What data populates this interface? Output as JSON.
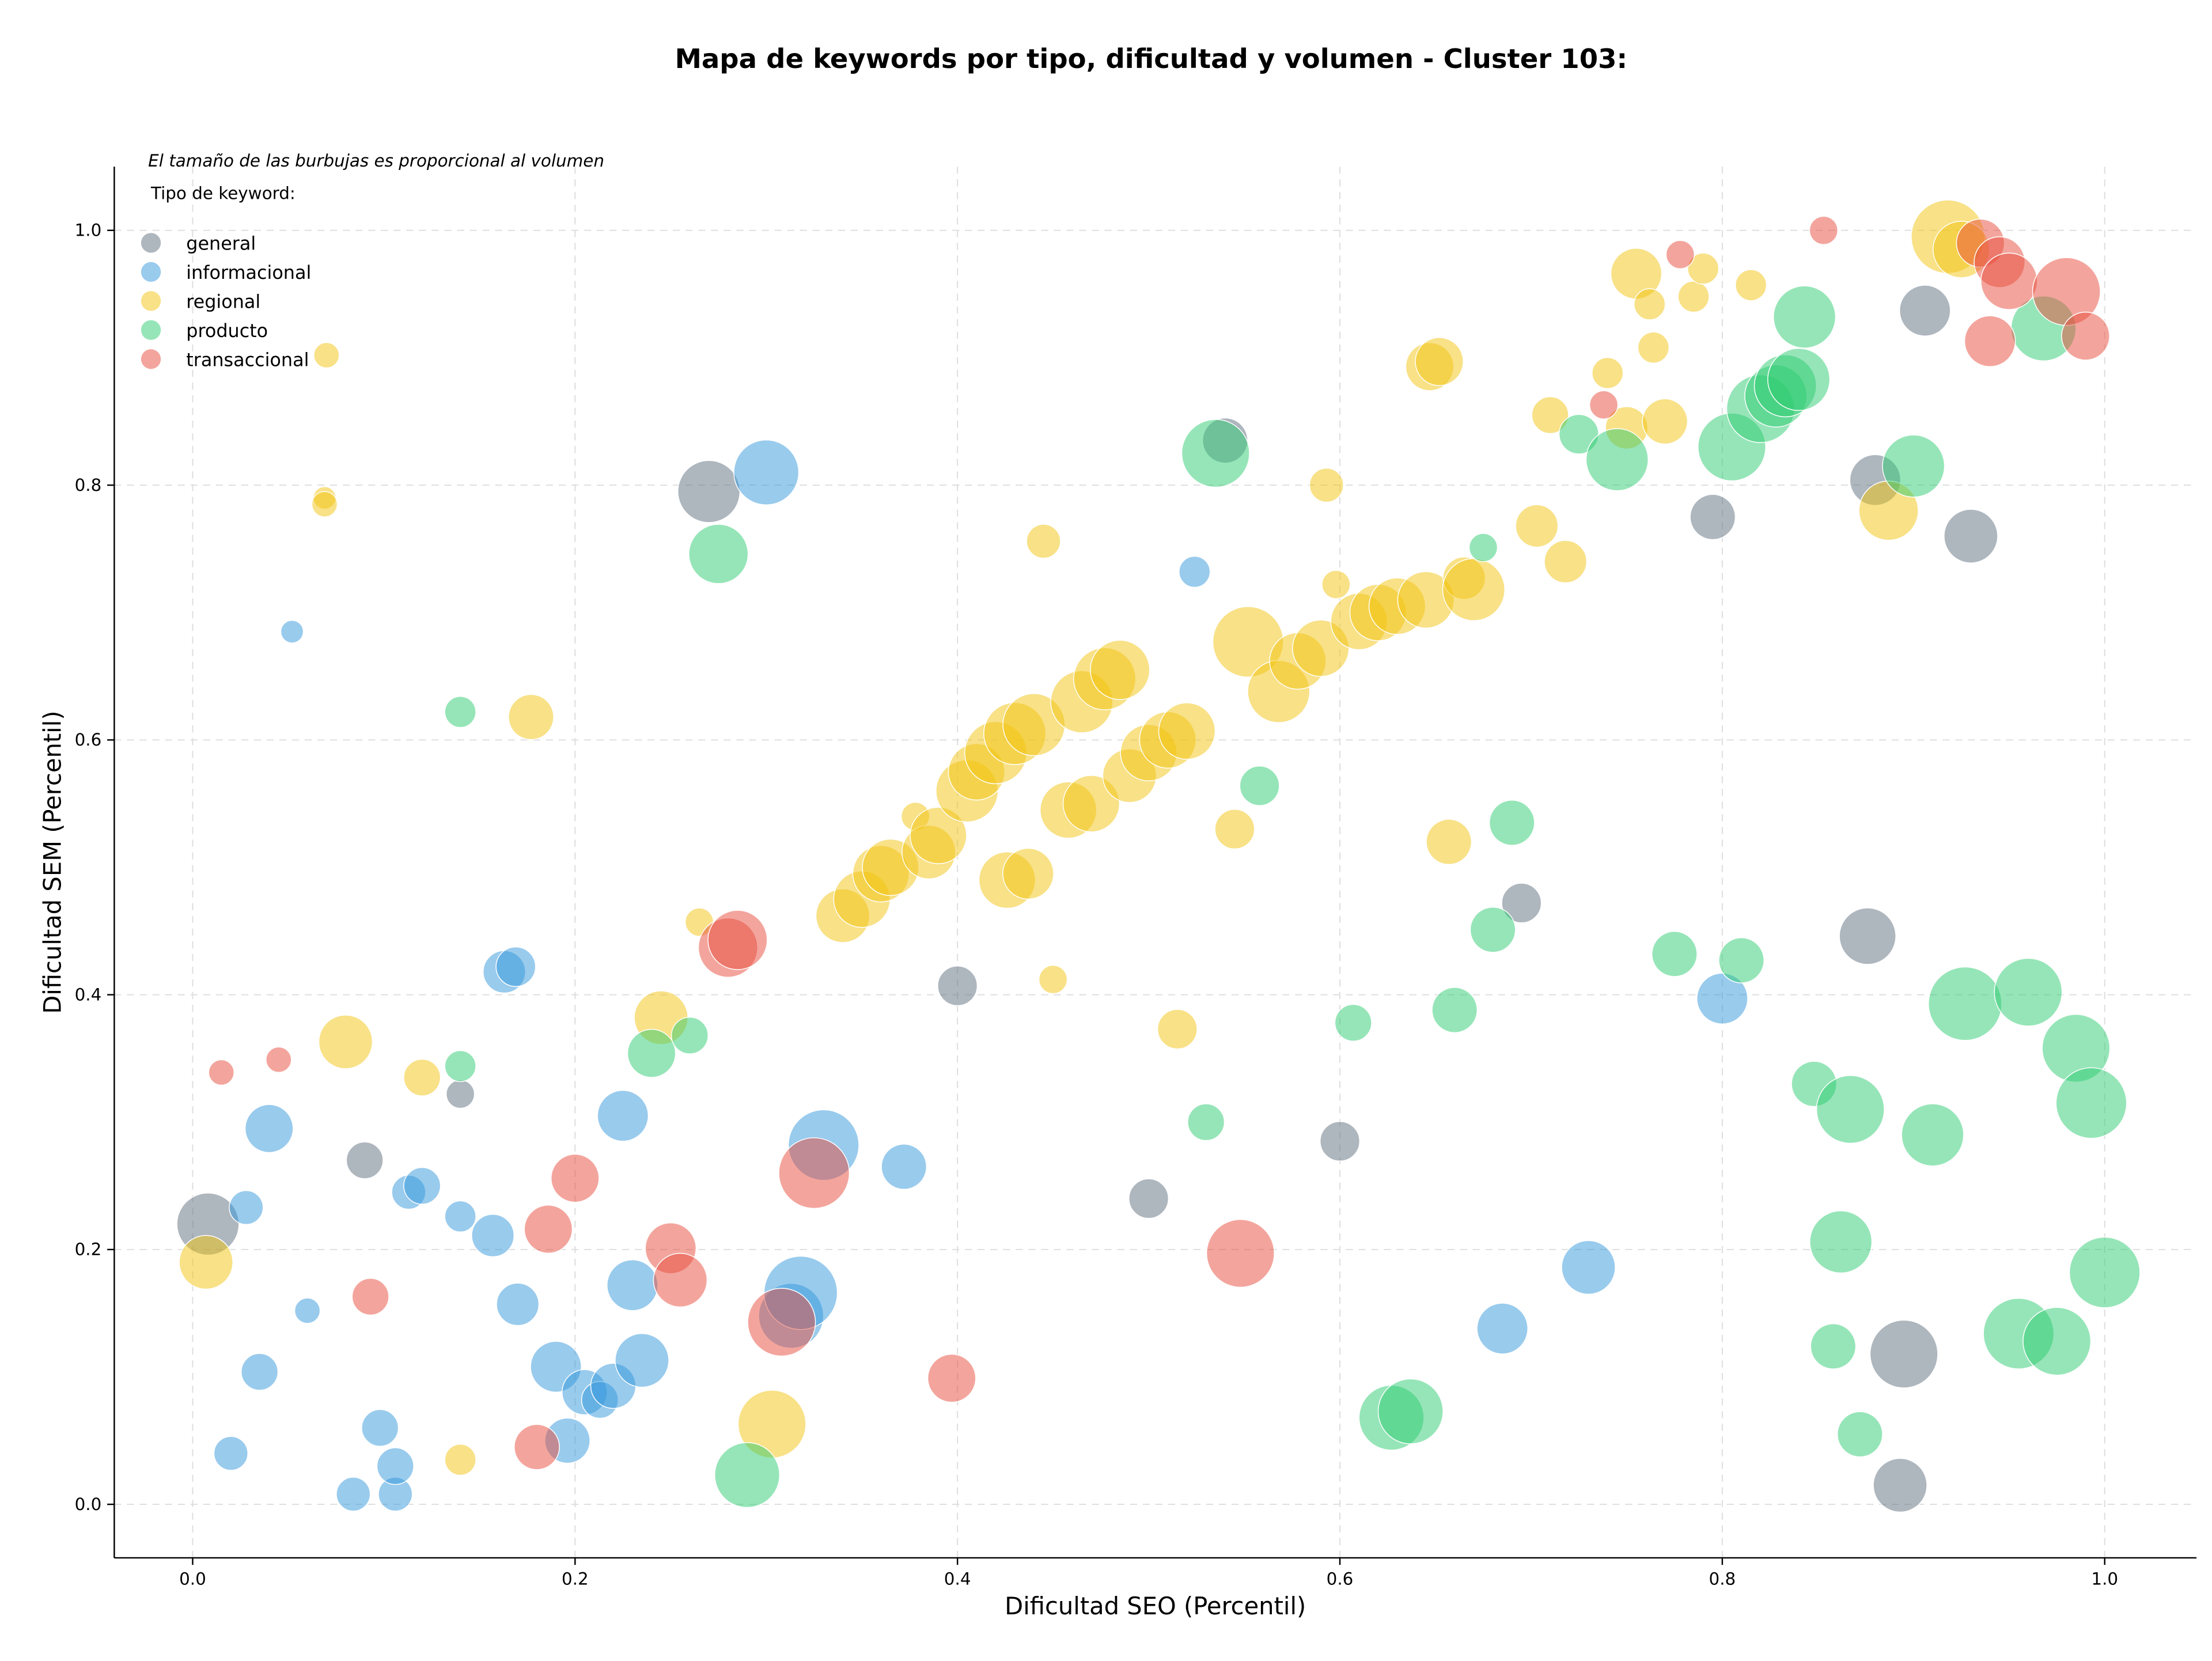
{
  "chart_data": {
    "type": "bubble",
    "title": "Mapa de keywords por tipo, dificultad y volumen - Cluster 103:",
    "annotation": "El tamaño de las burbujas es proporcional al volumen",
    "legend_title": "Tipo de keyword:",
    "legend": "upper left",
    "x_label": "Dificultad SEO (Percentil)",
    "y_label": "Dificultad SEM (Percentil)",
    "xlim": [
      -0.041,
      1.048
    ],
    "ylim": [
      -0.042,
      1.05
    ],
    "xticks": [
      {
        "value": 0,
        "label": "0.0"
      },
      0.2,
      0.4,
      0.6,
      0.8,
      {
        "value": 1,
        "label": "1.0"
      }
    ],
    "yticks": [
      {
        "value": 0,
        "label": "0.0"
      },
      0.2,
      0.4,
      0.6,
      0.8,
      {
        "value": 1,
        "label": "1.0"
      }
    ],
    "grid": true,
    "series": [
      {
        "name": "general",
        "color": "#5d6d7e",
        "x": [
          0.008,
          0.09,
          0.14,
          0.27,
          0.4,
          0.5,
          0.54,
          0.6,
          0.695,
          0.795,
          0.876,
          0.88,
          0.893,
          0.895,
          0.906,
          0.93
        ],
        "y": [
          0.22,
          0.27,
          0.322,
          0.795,
          0.407,
          0.24,
          0.835,
          0.285,
          0.472,
          0.775,
          0.446,
          0.804,
          0.015,
          0.118,
          0.937,
          0.76
        ],
        "sizes": [
          484,
          169,
          100,
          484,
          196,
          196,
          256,
          196,
          196,
          256,
          400,
          324,
          361,
          576,
          324,
          361
        ]
      },
      {
        "name": "informacional",
        "color": "#3498db",
        "x": [
          0.02,
          0.028,
          0.035,
          0.04,
          0.052,
          0.06,
          0.084,
          0.098,
          0.106,
          0.106,
          0.113,
          0.12,
          0.14,
          0.157,
          0.163,
          0.169,
          0.17,
          0.19,
          0.196,
          0.205,
          0.213,
          0.22,
          0.225,
          0.23,
          0.235,
          0.3,
          0.313,
          0.318,
          0.33,
          0.372,
          0.524,
          0.685,
          0.73,
          0.8
        ],
        "y": [
          0.04,
          0.233,
          0.104,
          0.295,
          0.685,
          0.152,
          0.008,
          0.06,
          0.008,
          0.03,
          0.245,
          0.25,
          0.226,
          0.211,
          0.418,
          0.422,
          0.157,
          0.108,
          0.05,
          0.088,
          0.082,
          0.093,
          0.305,
          0.172,
          0.113,
          0.81,
          0.148,
          0.166,
          0.282,
          0.265,
          0.732,
          0.138,
          0.186,
          0.397
        ],
        "sizes": [
          144,
          144,
          169,
          289,
          64,
          81,
          144,
          169,
          144,
          169,
          144,
          169,
          121,
          225,
          225,
          196,
          225,
          324,
          256,
          256,
          169,
          256,
          324,
          324,
          361,
          529,
          529,
          676,
          625,
          256,
          121,
          324,
          361,
          324
        ]
      },
      {
        "name": "regional",
        "color": "#f1c40f",
        "x": [
          0.007,
          0.07,
          0.069,
          0.069,
          0.08,
          0.12,
          0.14,
          0.177,
          0.245,
          0.265,
          0.303,
          0.34,
          0.35,
          0.36,
          0.365,
          0.378,
          0.385,
          0.39,
          0.405,
          0.41,
          0.42,
          0.43,
          0.44,
          0.426,
          0.437,
          0.445,
          0.45,
          0.458,
          0.465,
          0.47,
          0.477,
          0.485,
          0.49,
          0.5,
          0.51,
          0.52,
          0.515,
          0.545,
          0.552,
          0.568,
          0.578,
          0.59,
          0.593,
          0.598,
          0.61,
          0.62,
          0.63,
          0.645,
          0.647,
          0.652,
          0.657,
          0.665,
          0.67,
          0.703,
          0.71,
          0.718,
          0.74,
          0.75,
          0.755,
          0.762,
          0.764,
          0.77,
          0.785,
          0.79,
          0.815,
          0.887,
          0.918,
          0.925
        ],
        "y": [
          0.19,
          0.902,
          0.79,
          0.785,
          0.363,
          0.335,
          0.035,
          0.618,
          0.382,
          0.457,
          0.063,
          0.462,
          0.475,
          0.495,
          0.5,
          0.54,
          0.512,
          0.525,
          0.56,
          0.575,
          0.59,
          0.605,
          0.612,
          0.49,
          0.495,
          0.756,
          0.412,
          0.545,
          0.63,
          0.55,
          0.648,
          0.655,
          0.572,
          0.59,
          0.6,
          0.607,
          0.373,
          0.53,
          0.677,
          0.638,
          0.662,
          0.672,
          0.8,
          0.722,
          0.693,
          0.7,
          0.705,
          0.71,
          0.893,
          0.897,
          0.52,
          0.727,
          0.718,
          0.768,
          0.855,
          0.74,
          0.888,
          0.845,
          0.966,
          0.942,
          0.908,
          0.85,
          0.948,
          0.97,
          0.957,
          0.78,
          0.995,
          0.985
        ],
        "sizes": [
          361,
          81,
          64,
          81,
          361,
          169,
          121,
          256,
          361,
          100,
          576,
          361,
          400,
          400,
          400,
          100,
          361,
          400,
          484,
          400,
          484,
          484,
          484,
          400,
          324,
          144,
          100,
          400,
          484,
          400,
          484,
          441,
          361,
          400,
          400,
          400,
          196,
          196,
          625,
          484,
          400,
          400,
          144,
          100,
          400,
          400,
          400,
          400,
          289,
          289,
          256,
          225,
          484,
          225,
          169,
          225,
          121,
          225,
          324,
          121,
          121,
          256,
          121,
          121,
          121,
          441,
          676,
          400
        ]
      },
      {
        "name": "producto",
        "color": "#2ecc71",
        "x": [
          0.14,
          0.14,
          0.24,
          0.26,
          0.275,
          0.29,
          0.53,
          0.535,
          0.558,
          0.607,
          0.627,
          0.637,
          0.66,
          0.675,
          0.68,
          0.69,
          0.725,
          0.745,
          0.775,
          0.805,
          0.81,
          0.82,
          0.828,
          0.833,
          0.84,
          0.843,
          0.848,
          0.858,
          0.862,
          0.867,
          0.872,
          0.9,
          0.91,
          0.927,
          0.955,
          0.96,
          0.968,
          0.975,
          0.985,
          0.993,
          1.0
        ],
        "y": [
          0.622,
          0.344,
          0.354,
          0.368,
          0.746,
          0.023,
          0.3,
          0.825,
          0.564,
          0.378,
          0.068,
          0.073,
          0.388,
          0.751,
          0.451,
          0.535,
          0.84,
          0.82,
          0.432,
          0.83,
          0.427,
          0.86,
          0.87,
          0.878,
          0.883,
          0.932,
          0.33,
          0.124,
          0.206,
          0.31,
          0.055,
          0.815,
          0.29,
          0.393,
          0.134,
          0.402,
          0.923,
          0.128,
          0.358,
          0.315,
          0.182
        ],
        "sizes": [
          121,
          121,
          289,
          169,
          441,
          529,
          169,
          576,
          196,
          169,
          529,
          529,
          256,
          100,
          256,
          256,
          196,
          484,
          256,
          576,
          256,
          576,
          484,
          484,
          484,
          484,
          256,
          256,
          484,
          576,
          256,
          484,
          484,
          676,
          625,
          576,
          529,
          576,
          576,
          625,
          625
        ]
      },
      {
        "name": "transaccional",
        "color": "#e74c3c",
        "x": [
          0.015,
          0.045,
          0.093,
          0.18,
          0.186,
          0.2,
          0.25,
          0.255,
          0.28,
          0.285,
          0.308,
          0.325,
          0.397,
          0.548,
          0.738,
          0.778,
          0.853,
          0.935,
          0.94,
          0.945,
          0.95,
          0.98,
          0.99
        ],
        "y": [
          0.339,
          0.349,
          0.163,
          0.045,
          0.216,
          0.256,
          0.201,
          0.176,
          0.437,
          0.443,
          0.143,
          0.26,
          0.099,
          0.197,
          0.863,
          0.981,
          1.0,
          0.99,
          0.913,
          0.975,
          0.96,
          0.952,
          0.917
        ],
        "sizes": [
          81,
          81,
          169,
          256,
          289,
          289,
          324,
          361,
          441,
          441,
          576,
          625,
          289,
          576,
          100,
          100,
          100,
          289,
          324,
          324,
          400,
          576,
          289
        ]
      }
    ]
  }
}
